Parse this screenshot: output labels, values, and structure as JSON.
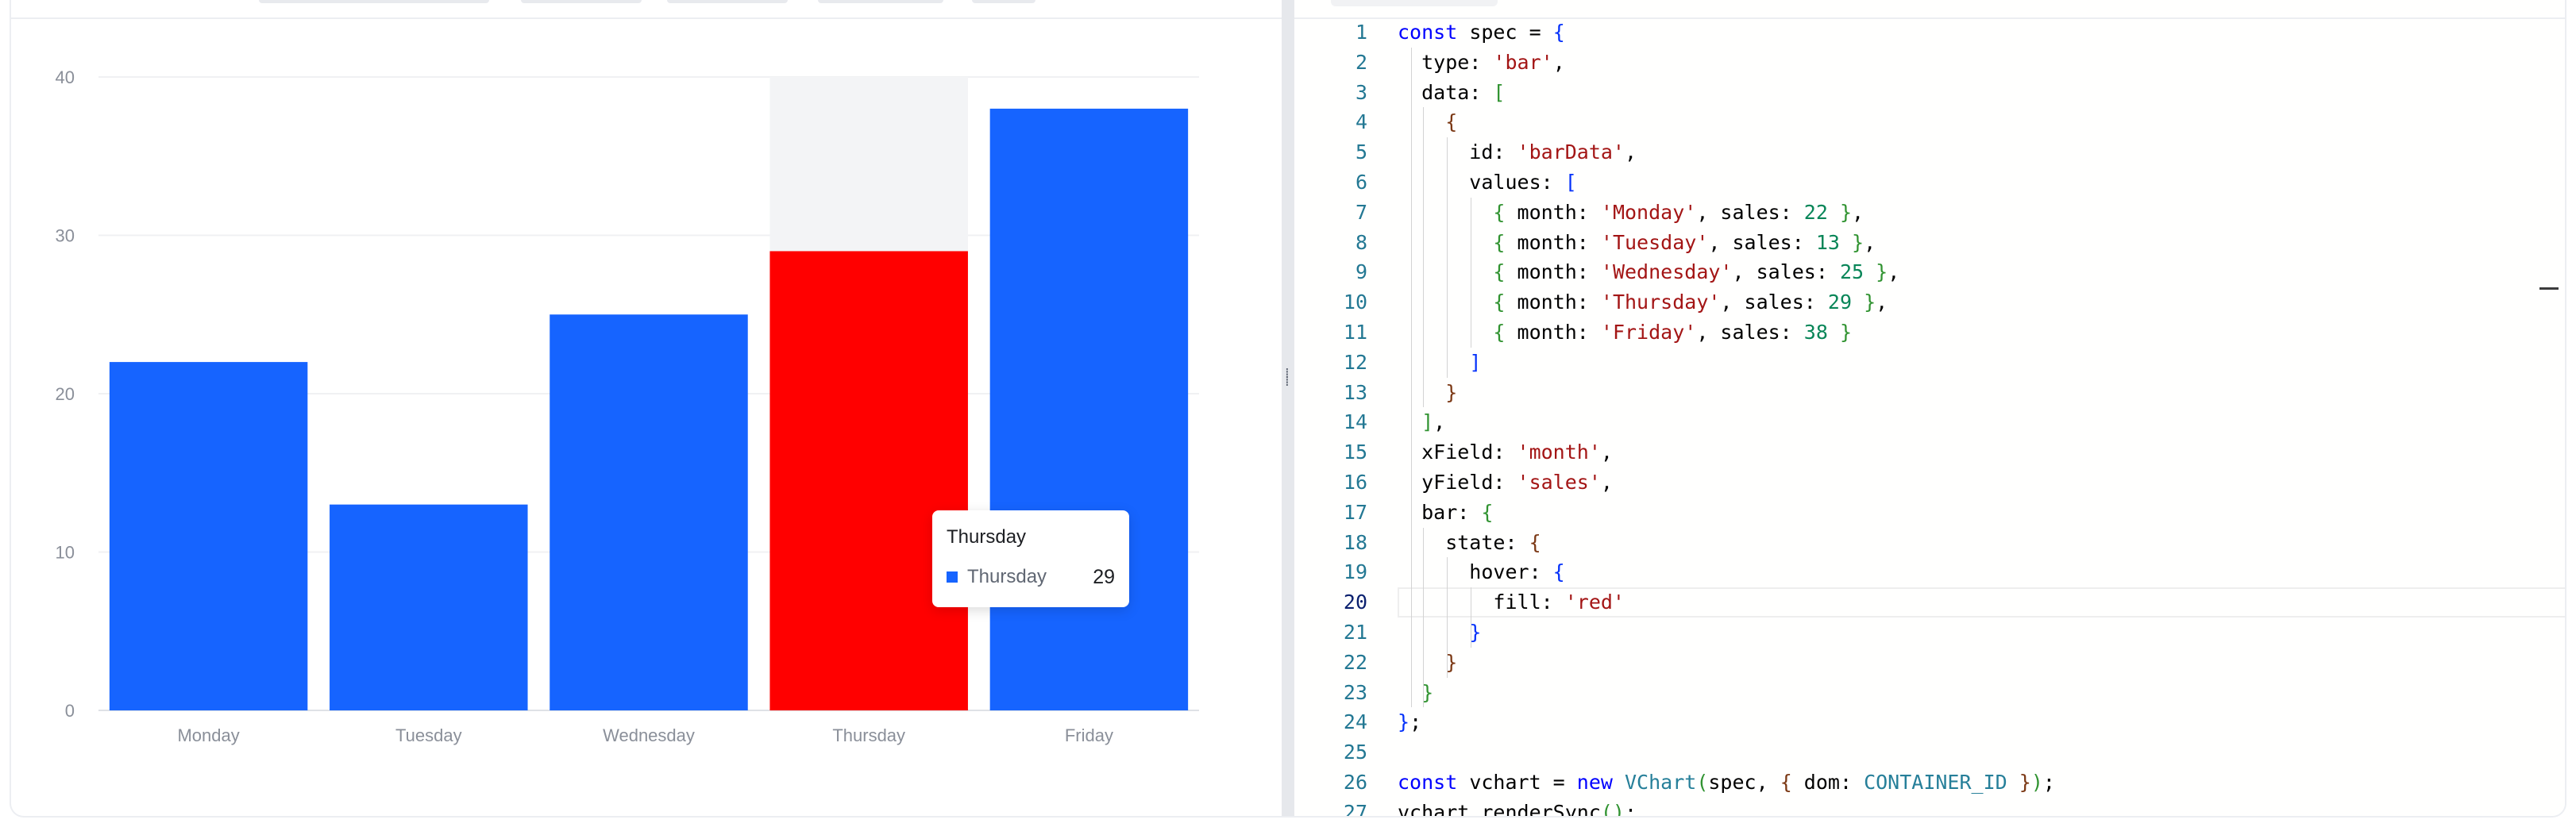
{
  "preview": {
    "tooltip": {
      "title": "Thursday",
      "key": "Thursday",
      "value": "29",
      "swatch_color": "#1664ff"
    }
  },
  "chart_data": {
    "type": "bar",
    "categories": [
      "Monday",
      "Tuesday",
      "Wednesday",
      "Thursday",
      "Friday"
    ],
    "values": [
      22,
      13,
      25,
      29,
      38
    ],
    "xlabel": "",
    "ylabel": "",
    "ylim": [
      0,
      40
    ],
    "yticks": [
      0,
      10,
      20,
      30,
      40
    ],
    "grid": true,
    "bar_color": "#1664ff",
    "hover_color": "#ff0000",
    "hovered_category": "Thursday",
    "hover_band_color": "#f3f4f6"
  },
  "editor": {
    "current_line": 20,
    "lines": [
      [
        [
          "const",
          "kw"
        ],
        [
          " spec = ",
          "plain"
        ],
        [
          "{",
          "b1"
        ]
      ],
      [
        [
          "  type: ",
          "plain"
        ],
        [
          "'bar'",
          "str"
        ],
        [
          ",",
          "plain"
        ]
      ],
      [
        [
          "  data: ",
          "plain"
        ],
        [
          "[",
          "b2"
        ]
      ],
      [
        [
          "    ",
          "plain"
        ],
        [
          "{",
          "b3"
        ]
      ],
      [
        [
          "      id: ",
          "plain"
        ],
        [
          "'barData'",
          "str"
        ],
        [
          ",",
          "plain"
        ]
      ],
      [
        [
          "      values: ",
          "plain"
        ],
        [
          "[",
          "b1"
        ]
      ],
      [
        [
          "        ",
          "plain"
        ],
        [
          "{",
          "b2"
        ],
        [
          " month: ",
          "plain"
        ],
        [
          "'Monday'",
          "str"
        ],
        [
          ", sales: ",
          "plain"
        ],
        [
          "22",
          "num"
        ],
        [
          " ",
          "plain"
        ],
        [
          "}",
          "b2"
        ],
        [
          ",",
          "plain"
        ]
      ],
      [
        [
          "        ",
          "plain"
        ],
        [
          "{",
          "b2"
        ],
        [
          " month: ",
          "plain"
        ],
        [
          "'Tuesday'",
          "str"
        ],
        [
          ", sales: ",
          "plain"
        ],
        [
          "13",
          "num"
        ],
        [
          " ",
          "plain"
        ],
        [
          "}",
          "b2"
        ],
        [
          ",",
          "plain"
        ]
      ],
      [
        [
          "        ",
          "plain"
        ],
        [
          "{",
          "b2"
        ],
        [
          " month: ",
          "plain"
        ],
        [
          "'Wednesday'",
          "str"
        ],
        [
          ", sales: ",
          "plain"
        ],
        [
          "25",
          "num"
        ],
        [
          " ",
          "plain"
        ],
        [
          "}",
          "b2"
        ],
        [
          ",",
          "plain"
        ]
      ],
      [
        [
          "        ",
          "plain"
        ],
        [
          "{",
          "b2"
        ],
        [
          " month: ",
          "plain"
        ],
        [
          "'Thursday'",
          "str"
        ],
        [
          ", sales: ",
          "plain"
        ],
        [
          "29",
          "num"
        ],
        [
          " ",
          "plain"
        ],
        [
          "}",
          "b2"
        ],
        [
          ",",
          "plain"
        ]
      ],
      [
        [
          "        ",
          "plain"
        ],
        [
          "{",
          "b2"
        ],
        [
          " month: ",
          "plain"
        ],
        [
          "'Friday'",
          "str"
        ],
        [
          ", sales: ",
          "plain"
        ],
        [
          "38",
          "num"
        ],
        [
          " ",
          "plain"
        ],
        [
          "}",
          "b2"
        ]
      ],
      [
        [
          "      ",
          "plain"
        ],
        [
          "]",
          "b1"
        ]
      ],
      [
        [
          "    ",
          "plain"
        ],
        [
          "}",
          "b3"
        ]
      ],
      [
        [
          "  ",
          "plain"
        ],
        [
          "]",
          "b2"
        ],
        [
          ",",
          "plain"
        ]
      ],
      [
        [
          "  xField: ",
          "plain"
        ],
        [
          "'month'",
          "str"
        ],
        [
          ",",
          "plain"
        ]
      ],
      [
        [
          "  yField: ",
          "plain"
        ],
        [
          "'sales'",
          "str"
        ],
        [
          ",",
          "plain"
        ]
      ],
      [
        [
          "  bar: ",
          "plain"
        ],
        [
          "{",
          "b2"
        ]
      ],
      [
        [
          "    state: ",
          "plain"
        ],
        [
          "{",
          "b3"
        ]
      ],
      [
        [
          "      hover: ",
          "plain"
        ],
        [
          "{",
          "b1"
        ]
      ],
      [
        [
          "        fill: ",
          "plain"
        ],
        [
          "'red'",
          "str"
        ]
      ],
      [
        [
          "      ",
          "plain"
        ],
        [
          "}",
          "b1"
        ]
      ],
      [
        [
          "    ",
          "plain"
        ],
        [
          "}",
          "b3"
        ]
      ],
      [
        [
          "  ",
          "plain"
        ],
        [
          "}",
          "b2"
        ]
      ],
      [
        [
          "}",
          "b1"
        ],
        [
          ";",
          "plain"
        ]
      ],
      [],
      [
        [
          "const",
          "kw"
        ],
        [
          " vchart = ",
          "plain"
        ],
        [
          "new",
          "kw"
        ],
        [
          " ",
          "plain"
        ],
        [
          "VChart",
          "cls"
        ],
        [
          "(",
          "b2"
        ],
        [
          "spec, ",
          "plain"
        ],
        [
          "{",
          "b3"
        ],
        [
          " dom: ",
          "plain"
        ],
        [
          "CONTAINER_ID",
          "cls"
        ],
        [
          " ",
          "plain"
        ],
        [
          "}",
          "b3"
        ],
        [
          ")",
          "b2"
        ],
        [
          ";",
          "plain"
        ]
      ],
      [
        [
          "vchart.renderSync",
          "plain"
        ],
        [
          "()",
          "b2"
        ],
        [
          ";",
          "plain"
        ]
      ]
    ]
  }
}
